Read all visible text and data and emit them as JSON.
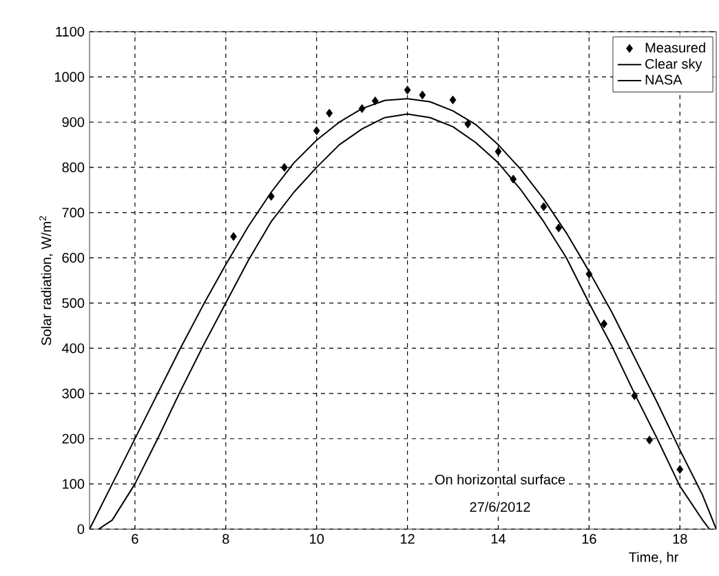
{
  "chart_data": {
    "type": "line",
    "xlabel": "Time, hr",
    "ylabel": "Solar radiation, W/m$^{2}$",
    "xlim": [
      5,
      18.8
    ],
    "ylim": [
      0,
      1100
    ],
    "xticks": [
      6,
      8,
      10,
      12,
      14,
      16,
      18
    ],
    "yticks": [
      0,
      100,
      200,
      300,
      400,
      500,
      600,
      700,
      800,
      900,
      1000,
      1100
    ],
    "grid": true,
    "legend": "top right",
    "annotations": [
      "On horizontal surface",
      "27/6/2012"
    ],
    "series": [
      {
        "name": "Measured",
        "type": "scatter",
        "marker": "diamond",
        "color": "#000000",
        "x": [
          8.17,
          9,
          9.29,
          10,
          10.28,
          11,
          11.29,
          12,
          12.33,
          13,
          13.33,
          14,
          14.33,
          15,
          15.33,
          16,
          16.33,
          17,
          17.33,
          18
        ],
        "values": [
          647,
          736,
          800,
          881,
          920,
          930,
          947,
          971,
          960,
          949,
          896,
          835,
          774,
          713,
          666,
          564,
          454,
          295,
          197,
          132
        ]
      },
      {
        "name": "Clear sky",
        "line_style": "solid",
        "color": "#000000",
        "x": [
          5,
          5.5,
          6,
          6.5,
          7,
          7.5,
          8,
          8.5,
          9,
          9.5,
          10,
          10.5,
          11,
          11.5,
          12,
          12.5,
          13,
          13.5,
          14,
          14.5,
          15,
          15.5,
          16,
          16.5,
          17,
          17.5,
          18,
          18.5,
          18.8
        ],
        "values": [
          0,
          100,
          200,
          300,
          400,
          495,
          585,
          670,
          745,
          810,
          860,
          900,
          930,
          948,
          952,
          945,
          925,
          895,
          850,
          795,
          730,
          655,
          570,
          480,
          380,
          280,
          175,
          75,
          0
        ]
      },
      {
        "name": "NASA",
        "line_style": "solid",
        "color": "#000000",
        "x": [
          5.2,
          5.5,
          6,
          6.5,
          7,
          7.5,
          8,
          8.5,
          9,
          9.5,
          10,
          10.5,
          11,
          11.5,
          12,
          12.5,
          13,
          13.5,
          14,
          14.5,
          15,
          15.5,
          16,
          16.5,
          17,
          17.5,
          18,
          18.5,
          18.65
        ],
        "values": [
          0,
          20,
          100,
          200,
          305,
          405,
          500,
          595,
          680,
          745,
          800,
          850,
          885,
          910,
          918,
          910,
          890,
          855,
          810,
          750,
          680,
          600,
          500,
          405,
          300,
          200,
          95,
          20,
          0
        ]
      }
    ]
  }
}
